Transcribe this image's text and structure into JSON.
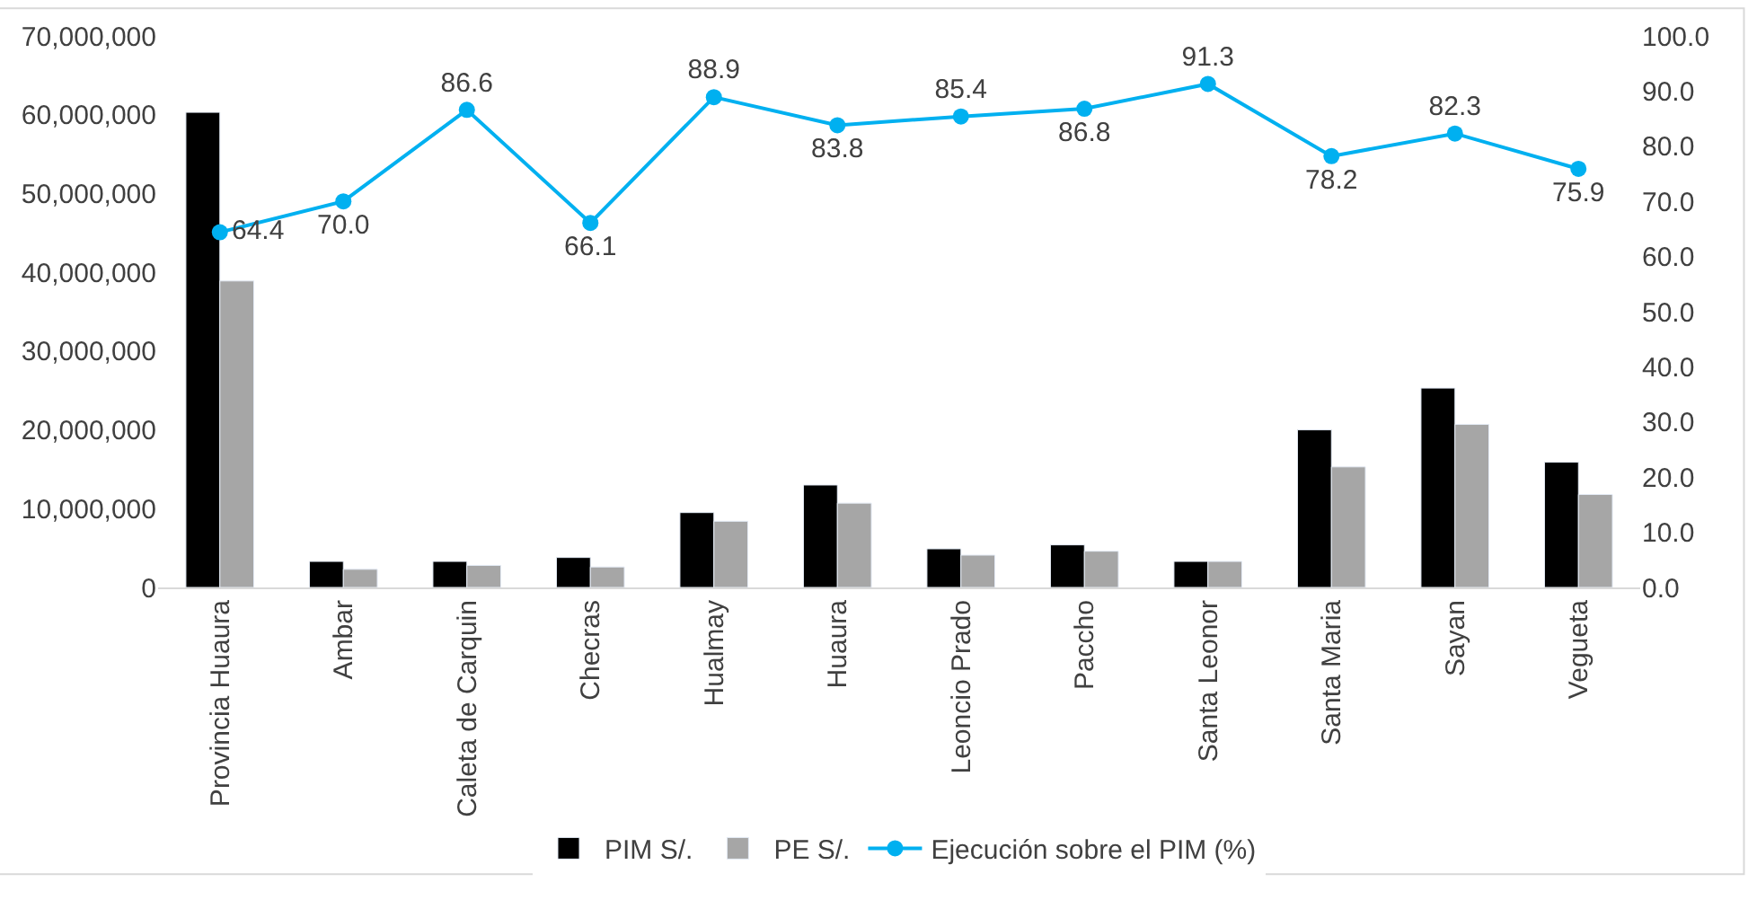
{
  "chart_data": {
    "type": "bar",
    "categories": [
      "Provincia Huaura",
      "Ambar",
      "Caleta de Carquin",
      "Checras",
      "Hualmay",
      "Huaura",
      "Leoncio Prado",
      "Paccho",
      "Santa Leonor",
      "Santa Maria",
      "Sayan",
      "Vegueta"
    ],
    "series": [
      {
        "name": "PIM S/.",
        "color": "#000000",
        "values": [
          60300000,
          3300000,
          3300000,
          3800000,
          9500000,
          13000000,
          4900000,
          5400000,
          3300000,
          20000000,
          25300000,
          15900000
        ]
      },
      {
        "name": "PE S/.",
        "color": "#a6a6a6",
        "values": [
          38900000,
          2300000,
          2800000,
          2600000,
          8400000,
          10700000,
          4100000,
          4600000,
          3300000,
          15300000,
          20700000,
          11800000
        ]
      },
      {
        "name": "Ejecución sobre el PIM (%)",
        "type": "line",
        "axis": "y2",
        "color": "#00b0f0",
        "marker": "circle",
        "values": [
          64.4,
          70.0,
          86.6,
          66.1,
          88.9,
          83.8,
          85.4,
          86.8,
          91.3,
          78.2,
          82.3,
          75.9
        ],
        "value_labels": [
          "64.4",
          "70.0",
          "86.6",
          "66.1",
          "88.9",
          "83.8",
          "85.4",
          "86.8",
          "91.3",
          "78.2",
          "82.3",
          "75.9"
        ]
      }
    ],
    "ylim": [
      0,
      70000000
    ],
    "yticks": [
      {
        "value": 0,
        "label": "0"
      },
      {
        "value": 10000000,
        "label": "10,000,000"
      },
      {
        "value": 20000000,
        "label": "20,000,000"
      },
      {
        "value": 30000000,
        "label": "30,000,000"
      },
      {
        "value": 40000000,
        "label": "40,000,000"
      },
      {
        "value": 50000000,
        "label": "50,000,000"
      },
      {
        "value": 60000000,
        "label": "60,000,000"
      },
      {
        "value": 70000000,
        "label": "70,000,000"
      }
    ],
    "y2lim": [
      0,
      100
    ],
    "y2ticks": [
      {
        "value": 0,
        "label": "0.0"
      },
      {
        "value": 10,
        "label": "10.0"
      },
      {
        "value": 20,
        "label": "20.0"
      },
      {
        "value": 30,
        "label": "30.0"
      },
      {
        "value": 40,
        "label": "40.0"
      },
      {
        "value": 50,
        "label": "50.0"
      },
      {
        "value": 60,
        "label": "60.0"
      },
      {
        "value": 70,
        "label": "70.0"
      },
      {
        "value": 80,
        "label": "80.0"
      },
      {
        "value": 90,
        "label": "90.0"
      },
      {
        "value": 100,
        "label": "100.0"
      }
    ],
    "legend": "bottom"
  }
}
